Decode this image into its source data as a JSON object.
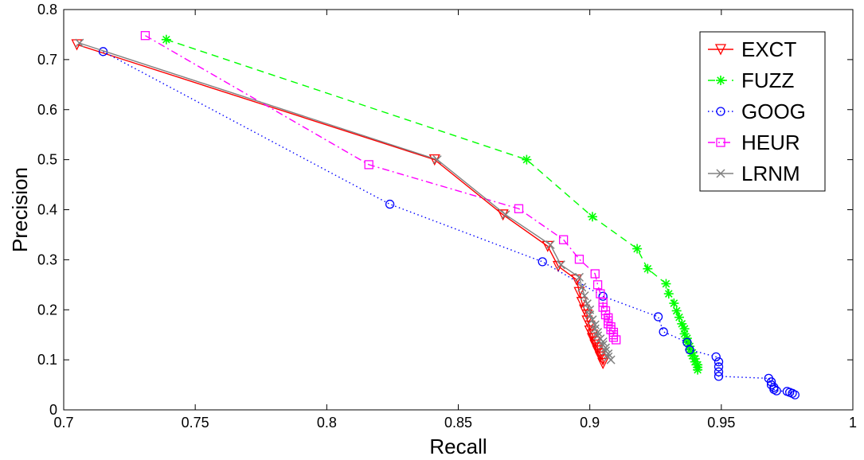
{
  "chart_data": {
    "type": "line",
    "title": "",
    "xlabel": "Recall",
    "ylabel": "Precision",
    "xlim": [
      0.7,
      1.0
    ],
    "ylim": [
      0,
      0.8
    ],
    "xticks": [
      "0.7",
      "0.75",
      "0.8",
      "0.85",
      "0.9",
      "0.95",
      "1"
    ],
    "yticks": [
      "0",
      "0.1",
      "0.2",
      "0.3",
      "0.4",
      "0.5",
      "0.6",
      "0.7",
      "0.8"
    ],
    "grid": false,
    "legend_position": "top-right",
    "series": [
      {
        "name": "EXCT",
        "color": "#ff0000",
        "line_style": "solid",
        "marker": "triangle-down",
        "x": [
          0.705,
          0.841,
          0.867,
          0.884,
          0.888,
          0.895,
          0.896,
          0.897,
          0.898,
          0.899,
          0.899,
          0.9,
          0.9,
          0.901,
          0.901,
          0.902,
          0.902,
          0.903,
          0.903,
          0.904,
          0.904,
          0.905,
          0.905
        ],
        "y": [
          0.73,
          0.5,
          0.39,
          0.327,
          0.287,
          0.26,
          0.235,
          0.215,
          0.2,
          0.19,
          0.178,
          0.168,
          0.158,
          0.15,
          0.143,
          0.136,
          0.13,
          0.124,
          0.118,
          0.112,
          0.106,
          0.1,
          0.093
        ]
      },
      {
        "name": "FUZZ",
        "color": "#00ff00",
        "line_style": "dashed",
        "marker": "star",
        "x": [
          0.739,
          0.876,
          0.901,
          0.918,
          0.922,
          0.929,
          0.93,
          0.932,
          0.933,
          0.934,
          0.935,
          0.936,
          0.936,
          0.937,
          0.937,
          0.938,
          0.938,
          0.939,
          0.939,
          0.94,
          0.94,
          0.941,
          0.941,
          0.941
        ],
        "y": [
          0.74,
          0.5,
          0.386,
          0.322,
          0.282,
          0.252,
          0.232,
          0.213,
          0.198,
          0.185,
          0.172,
          0.162,
          0.152,
          0.143,
          0.135,
          0.127,
          0.12,
          0.114,
          0.108,
          0.102,
          0.096,
          0.09,
          0.085,
          0.08
        ]
      },
      {
        "name": "GOOG",
        "color": "#0000ff",
        "line_style": "dotted",
        "marker": "circle",
        "x": [
          0.715,
          0.824,
          0.882,
          0.905,
          0.926,
          0.928,
          0.937,
          0.938,
          0.948,
          0.949,
          0.949,
          0.949,
          0.949,
          0.968,
          0.969,
          0.969,
          0.97,
          0.97,
          0.971,
          0.975,
          0.976,
          0.977,
          0.978
        ],
        "y": [
          0.716,
          0.411,
          0.296,
          0.227,
          0.186,
          0.156,
          0.135,
          0.12,
          0.106,
          0.096,
          0.086,
          0.076,
          0.067,
          0.063,
          0.056,
          0.05,
          0.045,
          0.041,
          0.038,
          0.037,
          0.035,
          0.033,
          0.03
        ]
      },
      {
        "name": "HEUR",
        "color": "#ff00ff",
        "line_style": "dashdot",
        "marker": "square",
        "x": [
          0.731,
          0.816,
          0.873,
          0.89,
          0.896,
          0.902,
          0.903,
          0.904,
          0.905,
          0.905,
          0.906,
          0.906,
          0.907,
          0.907,
          0.907,
          0.908,
          0.908,
          0.909,
          0.909,
          0.909,
          0.91
        ],
        "y": [
          0.748,
          0.49,
          0.402,
          0.34,
          0.301,
          0.272,
          0.25,
          0.232,
          0.215,
          0.205,
          0.198,
          0.19,
          0.184,
          0.178,
          0.172,
          0.166,
          0.16,
          0.155,
          0.15,
          0.145,
          0.14
        ]
      },
      {
        "name": "LRNM",
        "color": "#808080",
        "line_style": "solid",
        "marker": "x",
        "x": [
          0.706,
          0.842,
          0.868,
          0.885,
          0.889,
          0.896,
          0.897,
          0.898,
          0.899,
          0.9,
          0.9,
          0.901,
          0.902,
          0.902,
          0.903,
          0.903,
          0.904,
          0.905,
          0.905,
          0.906,
          0.906,
          0.907,
          0.907,
          0.908
        ],
        "y": [
          0.733,
          0.5,
          0.39,
          0.33,
          0.29,
          0.265,
          0.245,
          0.228,
          0.212,
          0.2,
          0.19,
          0.18,
          0.17,
          0.162,
          0.155,
          0.148,
          0.142,
          0.136,
          0.13,
          0.124,
          0.118,
          0.112,
          0.106,
          0.1
        ]
      }
    ]
  }
}
